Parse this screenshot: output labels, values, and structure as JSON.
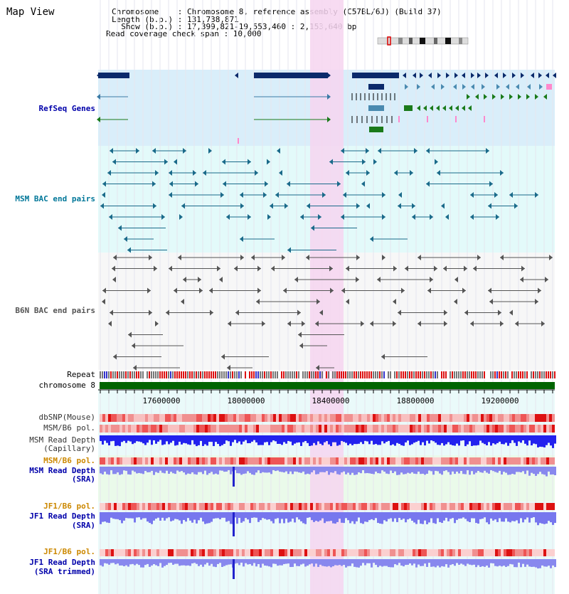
{
  "header": {
    "title": "Map View",
    "chromosome_line": "Chromosome    : Chromosome 8, reference assembly (C57BL/6J) (Build 37)",
    "length_line": "Length (b.p.) : 131,738,871",
    "show_line": "  Show (b.p.) : 17,399,821-19,553,460 : 2,153,640 bp",
    "coverage_line": "Read coverage check span : 10,000"
  },
  "tracks": {
    "refseq": "RefSeq Genes",
    "msm_bac": "MSM BAC end pairs",
    "b6n_bac": "B6N BAC end pairs",
    "repeat": "Repeat",
    "chromosome": "chromosome 8",
    "dbsnp": "dbSNP(Mouse)",
    "msm_b6_pol_1": "MSM/B6 pol.",
    "msm_read_depth_cap_1": "MSM Read Depth",
    "msm_read_depth_cap_2": "(Capillary)",
    "msm_b6_pol_2": "MSM/B6 pol.",
    "msm_read_depth_sra_1": "MSM Read Depth",
    "msm_read_depth_sra_2": "(SRA)",
    "jf1_b6_pol_1": "JF1/B6 pol.",
    "jf1_read_depth_sra_1": "JF1 Read Depth",
    "jf1_read_depth_sra_2": "(SRA)",
    "jf1_b6_pol_2": "JF1/B6 pol.",
    "jf1_read_depth_trim_1": "JF1 Read Depth",
    "jf1_read_depth_trim_2": "(SRA trimmed)"
  },
  "ruler": {
    "ticks": [
      "17600000",
      "18000000",
      "18400000",
      "18800000",
      "19200000"
    ]
  },
  "colors": {
    "refseq_bg": "#d9eefa",
    "bac_bg": "#e3fafa",
    "highlight": "#f6d5f0",
    "refseq_label": "#0000aa",
    "msm_label": "#007799",
    "b6n_label": "#555555",
    "pol_label": "#cc8800",
    "depth_label": "#0000aa"
  }
}
